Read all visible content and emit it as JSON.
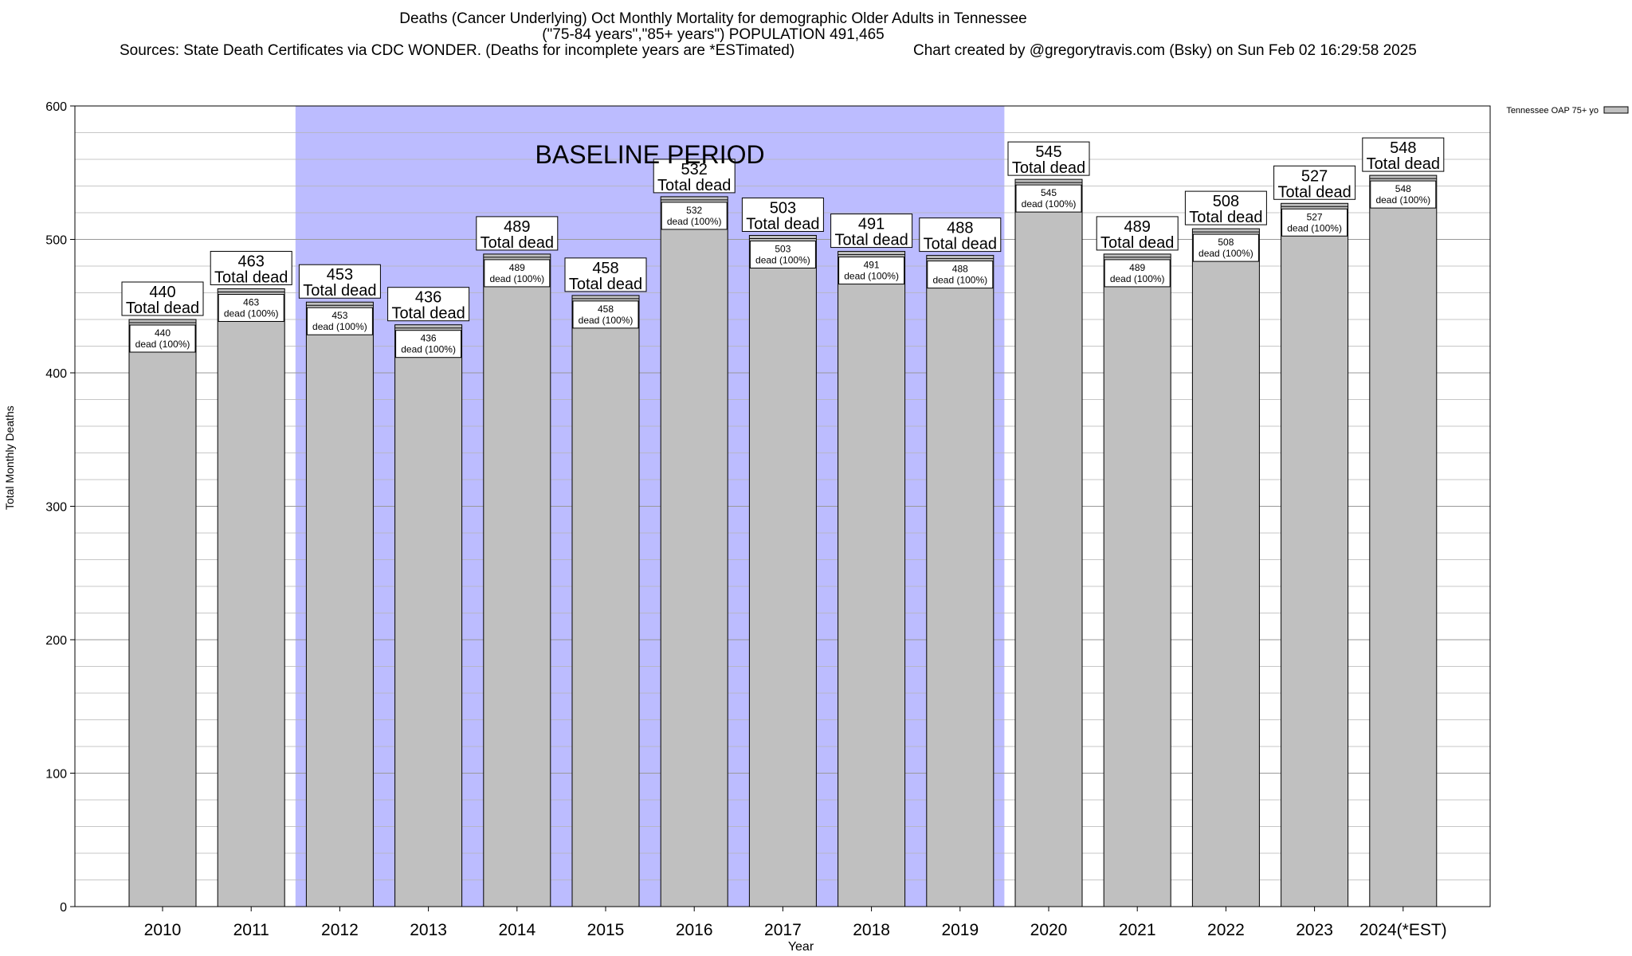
{
  "header": {
    "title_line1": "Deaths (Cancer Underlying) Oct Monthly Mortality for demographic Older Adults in Tennessee",
    "title_line2": "(\"75-84 years\",\"85+ years\") POPULATION 491,465",
    "sources": "Sources: State Death Certificates via CDC WONDER. (Deaths for incomplete years are *ESTimated)",
    "credit": "Chart created by @gregorytravis.com (Bsky) on Sun Feb 02 16:29:58 2025"
  },
  "chart_data": {
    "type": "bar",
    "categories": [
      "2010",
      "2011",
      "2012",
      "2013",
      "2014",
      "2015",
      "2016",
      "2017",
      "2018",
      "2019",
      "2020",
      "2021",
      "2022",
      "2023",
      "2024(*EST)"
    ],
    "series": [
      {
        "name": "Tennessee OAP 75+ yo",
        "values": [
          440,
          463,
          453,
          436,
          489,
          458,
          532,
          503,
          491,
          488,
          545,
          489,
          508,
          527,
          548
        ]
      }
    ],
    "xlabel": "Year",
    "ylabel": "Total Monthly Deaths",
    "ylim": [
      0,
      600
    ],
    "yticks": [
      0,
      100,
      200,
      300,
      400,
      500,
      600
    ],
    "grid": true,
    "legend_position": "top-right",
    "top_label_suffix": "Total dead",
    "inner_label_suffix": "dead (100%)",
    "baseline_period": {
      "label": "BASELINE PERIOD",
      "from": "2012",
      "to": "2019"
    },
    "colors": {
      "bar": "#c0c0c0",
      "baseline": "#bcbcff",
      "grid": "#b4b4b4"
    }
  }
}
